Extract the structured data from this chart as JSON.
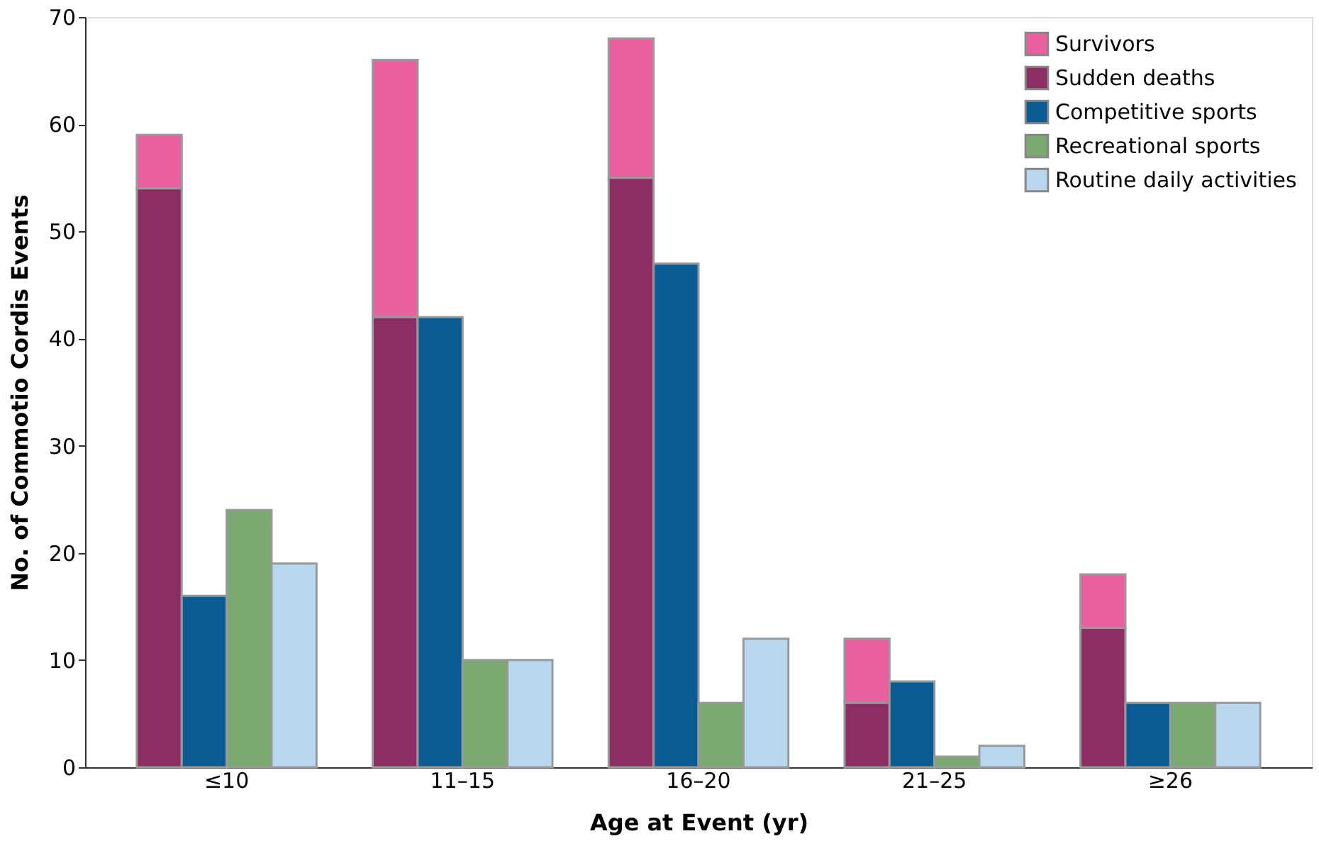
{
  "chart_data": {
    "type": "bar",
    "xlabel": "Age at Event (yr)",
    "ylabel": "No. of Commotio Cordis Events",
    "categories": [
      "≤10",
      "11–15",
      "16–20",
      "21–25",
      "≥26"
    ],
    "series": [
      {
        "name": "Survivors",
        "color": "#e8609e",
        "values": [
          5,
          24,
          13,
          6,
          5
        ],
        "base": [
          54,
          42,
          55,
          6,
          13
        ]
      },
      {
        "name": "Sudden deaths",
        "color": "#8c2d63",
        "values": [
          54,
          42,
          55,
          6,
          13
        ]
      },
      {
        "name": "Competitive sports",
        "color": "#0b5c94",
        "values": [
          16,
          42,
          47,
          8,
          6
        ]
      },
      {
        "name": "Recreational sports",
        "color": "#7aaa72",
        "values": [
          24,
          10,
          6,
          1,
          6
        ]
      },
      {
        "name": "Routine daily activities",
        "color": "#b9d8f0",
        "values": [
          19,
          10,
          12,
          2,
          6
        ]
      }
    ],
    "ylim": [
      0,
      70
    ],
    "yticks": [
      0,
      10,
      20,
      30,
      40,
      50,
      60,
      70
    ],
    "grid": false,
    "legend": "top right"
  }
}
